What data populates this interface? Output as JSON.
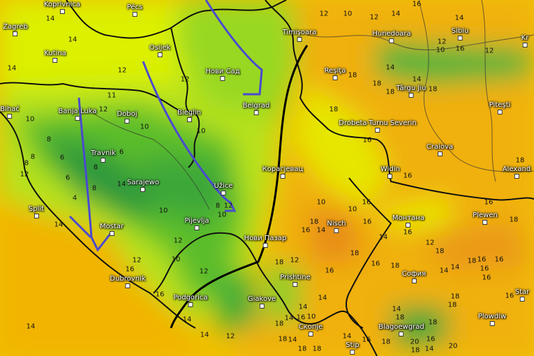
{
  "map": {
    "colors": {
      "cold": "#1f8f3a",
      "cool": "#6cc62a",
      "mild": "#d8f000",
      "warm": "#f5c400",
      "hot": "#ee9a10",
      "sea": "#f2b500",
      "front_cold": "#4a4ad0",
      "front_line": "#000000"
    },
    "cities": [
      "Koprivnica",
      "Pécs",
      "Zagreb",
      "Kutina",
      "Osijek",
      "Нови Сад",
      "Banja Luka",
      "Doboj",
      "Bieglin",
      "Belgrad",
      "Travnik",
      "Sarajewo",
      "Užice",
      "Split",
      "Mostar",
      "Pijevlja",
      "Нови Пазар",
      "Dubrovnik",
      "Podgorica",
      "Giakove",
      "Timişoara",
      "Hunedoara",
      "Sibiu",
      "Kr",
      "Reşiţa",
      "Târgu Jiu",
      "Piteşti",
      "Drobeta-Turnu Severin",
      "Craiova",
      "Widin",
      "Alexand",
      "Корагјевац",
      "Nisch",
      "Монтана",
      "Plewen",
      "Prishtine",
      "София",
      "Star",
      "Скопје",
      "Blagoewgrad",
      "Plowdiw",
      "Stip",
      "Bihać"
    ],
    "temperatures": [
      14,
      14,
      14,
      12,
      12,
      11,
      12,
      10,
      10,
      10,
      8,
      8,
      6,
      8,
      12,
      6,
      4,
      8,
      6,
      8,
      10,
      14,
      12,
      10,
      8,
      12,
      10,
      12,
      14,
      16,
      14,
      12,
      10,
      12,
      16,
      14,
      18,
      14,
      18,
      18,
      18,
      18,
      16,
      16,
      18,
      16,
      12,
      10,
      14,
      10,
      16,
      14,
      16,
      12,
      14,
      16,
      18,
      16,
      14,
      16,
      18,
      16,
      18,
      18,
      18,
      16,
      18,
      16,
      18,
      16,
      14,
      18,
      16,
      14,
      18,
      20,
      18,
      16,
      20,
      14,
      16,
      18,
      18,
      14,
      14,
      14,
      18,
      18,
      10,
      16,
      18,
      16,
      14,
      18,
      18,
      14,
      14,
      12,
      16,
      16,
      14,
      14,
      12,
      10,
      12,
      12
    ]
  }
}
